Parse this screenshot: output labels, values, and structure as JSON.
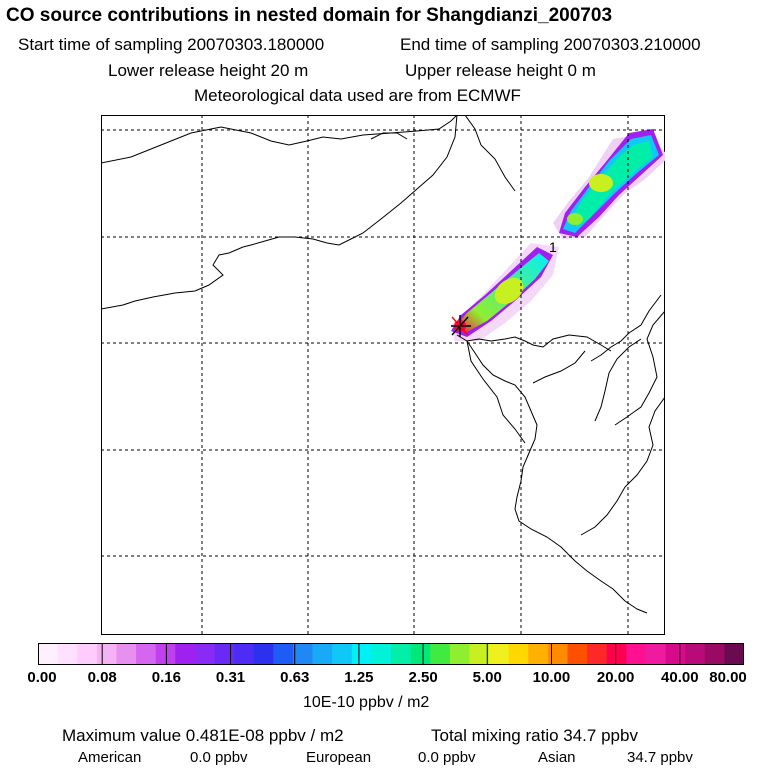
{
  "header": {
    "title": "CO  source contributions in nested domain for Shangdianzi_200703",
    "start_time": "Start time of sampling 20070303.180000",
    "end_time": "End time of sampling 20070303.210000",
    "lower_height": "Lower release height   20 m",
    "upper_height": "Upper release height    0 m",
    "met_data": "Meteorological data used are from ECMWF"
  },
  "map": {
    "marker_label": "1"
  },
  "colorbar": {
    "colors": [
      "#fff0ff",
      "#ffe0ff",
      "#ffcdfb",
      "#f5b2f5",
      "#e890f0",
      "#d466f0",
      "#c040f0",
      "#a020f0",
      "#8a2af5",
      "#6a2af5",
      "#4d2cf5",
      "#2e30f0",
      "#1f5cf5",
      "#2088f5",
      "#19aaf7",
      "#10c8f8",
      "#00f0f8",
      "#00f2d8",
      "#00eea8",
      "#00e87a",
      "#40ea40",
      "#90ee30",
      "#c8f020",
      "#f0f020",
      "#ffd800",
      "#ffb000",
      "#ff8c00",
      "#ff5000",
      "#ff2828",
      "#ff0050",
      "#ff1090",
      "#f01aa0",
      "#d80a8c",
      "#b80a78",
      "#980a64",
      "#6a0a50"
    ],
    "ticks": [
      "0.00",
      "0.08",
      "0.16",
      "0.31",
      "0.63",
      "1.25",
      "2.50",
      "5.00",
      "10.00",
      "20.00",
      "40.00",
      "80.00"
    ],
    "unit": "10E-10 ppbv / m2"
  },
  "stats": {
    "max_value": "Maximum value  0.481E-08 ppbv / m2",
    "total": "Total mixing ratio      34.7 ppbv",
    "american_label": "American",
    "american_value": "0.0 ppbv",
    "european_label": "European",
    "european_value": "0.0 ppbv",
    "asian_label": "Asian",
    "asian_value": "34.7 ppbv"
  }
}
